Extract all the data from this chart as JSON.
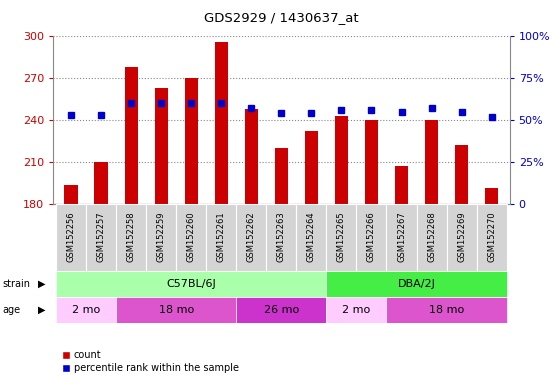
{
  "title": "GDS2929 / 1430637_at",
  "samples": [
    "GSM152256",
    "GSM152257",
    "GSM152258",
    "GSM152259",
    "GSM152260",
    "GSM152261",
    "GSM152262",
    "GSM152263",
    "GSM152264",
    "GSM152265",
    "GSM152266",
    "GSM152267",
    "GSM152268",
    "GSM152269",
    "GSM152270"
  ],
  "counts": [
    193,
    210,
    278,
    263,
    270,
    296,
    248,
    220,
    232,
    243,
    240,
    207,
    240,
    222,
    191
  ],
  "percentile_ranks": [
    53,
    53,
    60,
    60,
    60,
    60,
    57,
    54,
    54,
    56,
    56,
    55,
    57,
    55,
    52
  ],
  "ylim_left": [
    180,
    300
  ],
  "ylim_right": [
    0,
    100
  ],
  "yticks_left": [
    180,
    210,
    240,
    270,
    300
  ],
  "yticks_right": [
    0,
    25,
    50,
    75,
    100
  ],
  "bar_color": "#cc0000",
  "dot_color": "#0000cc",
  "bar_bottom": 180,
  "strain_groups": [
    {
      "label": "C57BL/6J",
      "start": 0,
      "end": 9,
      "color": "#aaffaa"
    },
    {
      "label": "DBA/2J",
      "start": 9,
      "end": 15,
      "color": "#44ee44"
    }
  ],
  "age_groups": [
    {
      "label": "2 mo",
      "start": 0,
      "end": 2,
      "color": "#ffccff"
    },
    {
      "label": "18 mo",
      "start": 2,
      "end": 6,
      "color": "#dd55cc"
    },
    {
      "label": "26 mo",
      "start": 6,
      "end": 9,
      "color": "#cc33cc"
    },
    {
      "label": "2 mo",
      "start": 9,
      "end": 11,
      "color": "#ffccff"
    },
    {
      "label": "18 mo",
      "start": 11,
      "end": 15,
      "color": "#dd55cc"
    }
  ],
  "tick_color_left": "#cc0000",
  "tick_color_right": "#0000cc",
  "grid_color": "#888888",
  "plot_bg": "#f2f2f2",
  "xticklabel_bg": "#cccccc"
}
